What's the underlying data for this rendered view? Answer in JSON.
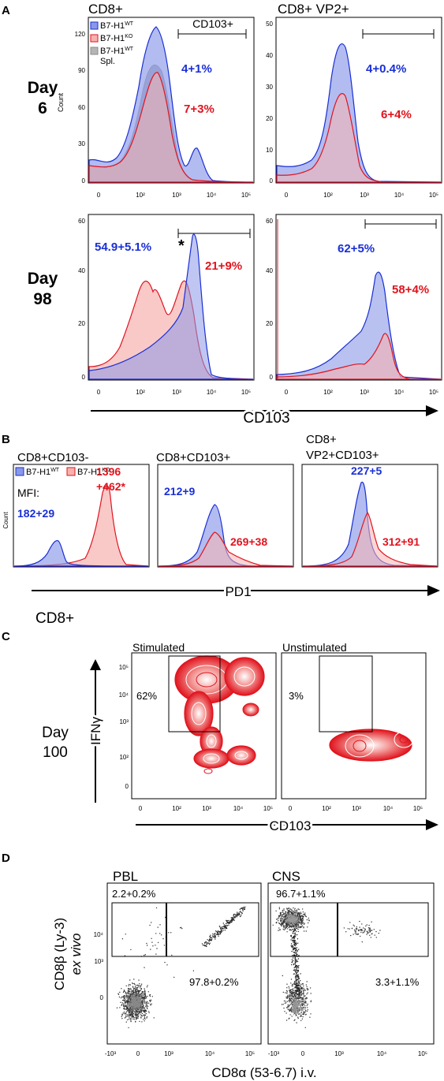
{
  "panel_a": {
    "letter": "A",
    "col1_title": "CD8+",
    "col2_title": "CD8+ VP2+",
    "row1_label": [
      "Day",
      "6"
    ],
    "row2_label": [
      "Day",
      "98"
    ],
    "gate_label": "CD103+",
    "yaxis_label": "Count",
    "xaxis_label": "CD103",
    "legend": [
      {
        "name_base": "B7-H1",
        "name_sup": "WT",
        "color": "#8b98e8"
      },
      {
        "name_base": "B7-H1",
        "name_sup": "KO",
        "color": "#f7b2b0"
      },
      {
        "name_base": "B7-H1",
        "name_sup": "WT",
        "name_extra": "Spl.",
        "color": "#b5b5b5"
      }
    ],
    "stats": {
      "d6_cd8_wt": "4+1%",
      "d6_cd8_ko": "7+3%",
      "d6_vp2_wt": "4+0.4%",
      "d6_vp2_ko": "6+4%",
      "d98_cd8_wt": "54.9+5.1%",
      "d98_cd8_ko": "21+9%",
      "d98_vp2_wt": "62+5%",
      "d98_vp2_ko": "58+4%",
      "star": "*"
    },
    "y_ticks": {
      "d6_cd8": [
        "120",
        "90",
        "60",
        "30",
        "0"
      ],
      "d6_vp2": [
        "50",
        "40",
        "30",
        "20",
        "10",
        "0"
      ],
      "d98_cd8": [
        "60",
        "40",
        "20",
        "0"
      ],
      "d98_vp2": [
        "60",
        "40",
        "20",
        "0"
      ]
    },
    "x_ticks": [
      "0",
      "10²",
      "10³",
      "10⁴",
      "10⁵"
    ]
  },
  "panel_b": {
    "letter": "B",
    "titles": [
      "CD8+CD103-",
      "CD8+CD103+",
      "CD8+",
      "VP2+CD103+"
    ],
    "legend": [
      {
        "name_base": "B7-H1",
        "name_sup": "WT"
      },
      {
        "name_base": "B7-H1",
        "name_sup": "KO"
      }
    ],
    "mfi_label": "MFI:",
    "stats": {
      "p1_wt": "182+29",
      "p1_ko_a": "1396",
      "p1_ko_b": "+462*",
      "p2_wt": "212+9",
      "p2_ko": "269+38",
      "p3_wt": "227+5",
      "p3_ko": "312+91"
    },
    "yaxis_label": "Count",
    "xaxis_label": "PD1"
  },
  "panel_c": {
    "letter": "C",
    "heading": "CD8+",
    "day_label": [
      "Day",
      "100"
    ],
    "titles": [
      "Stimulated",
      "Unstimulated"
    ],
    "stats": [
      "62%",
      "3%"
    ],
    "yaxis_label": "IFNγ",
    "xaxis_label": "CD103",
    "y_ticks": [
      "10⁵",
      "10⁴",
      "10³",
      "10²",
      "0"
    ]
  },
  "panel_d": {
    "letter": "D",
    "titles": [
      "PBL",
      "CNS"
    ],
    "stats": {
      "pbl_top": "2.2+0.2%",
      "pbl_bottom": "97.8+0.2%",
      "cns_top": "96.7+1.1%",
      "cns_bottom": "3.3+1.1%"
    },
    "yaxis_label_a": "CD8β (Ly-3)",
    "yaxis_label_b": "ex vivo",
    "xaxis_label": "CD8α (53-6.7) i.v.",
    "y_ticks": [
      "10⁴",
      "10³",
      "0"
    ],
    "x_ticks": [
      "-10³",
      "0",
      "10³",
      "10⁴",
      "10⁵"
    ]
  }
}
